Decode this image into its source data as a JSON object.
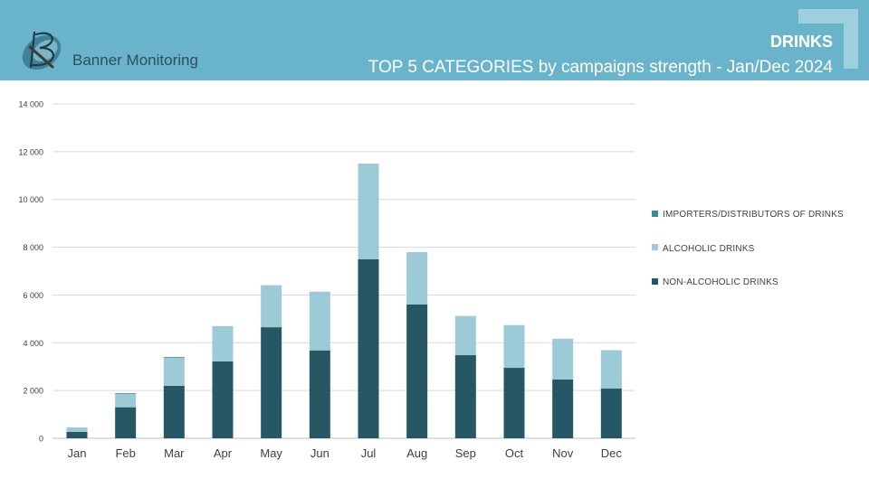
{
  "header": {
    "brand": "Banner Monitoring",
    "category": "DRINKS",
    "subtitle": "TOP 5 CATEGORIES by campaigns strength - Jan/Dec 2024",
    "bg_color": "#69b3cb"
  },
  "chart_data": {
    "type": "bar",
    "stacked": true,
    "categories": [
      "Jan",
      "Feb",
      "Mar",
      "Apr",
      "May",
      "Jun",
      "Jul",
      "Aug",
      "Sep",
      "Oct",
      "Nov",
      "Dec"
    ],
    "series": [
      {
        "name": "NON-ALCOHOLIC DRINKS",
        "color": "#255765",
        "values": [
          270,
          1300,
          2200,
          3220,
          4650,
          3680,
          7500,
          5600,
          3480,
          2950,
          2460,
          2080
        ]
      },
      {
        "name": "ALCOHOLIC DRINKS",
        "color": "#9dcad7",
        "values": [
          190,
          560,
          1170,
          1480,
          1760,
          2460,
          4000,
          2200,
          1640,
          1790,
          1710,
          1610
        ]
      },
      {
        "name": "IMPORTERS/DISTRIBUTORS OF DRINKS",
        "color": "#3a8a97",
        "values": [
          0,
          30,
          30,
          0,
          0,
          0,
          0,
          0,
          0,
          0,
          0,
          0
        ]
      }
    ],
    "ylim": [
      0,
      14000
    ],
    "yticks": [
      0,
      2000,
      4000,
      6000,
      8000,
      10000,
      12000,
      14000
    ],
    "ytick_labels": [
      "0",
      "2 000",
      "4 000",
      "6 000",
      "8 000",
      "10 000",
      "12 000",
      "14 000"
    ],
    "grid": true,
    "legend_position": "right",
    "legend_order": [
      "IMPORTERS/DISTRIBUTORS OF DRINKS",
      "ALCOHOLIC DRINKS",
      "NON-ALCOHOLIC DRINKS"
    ]
  }
}
